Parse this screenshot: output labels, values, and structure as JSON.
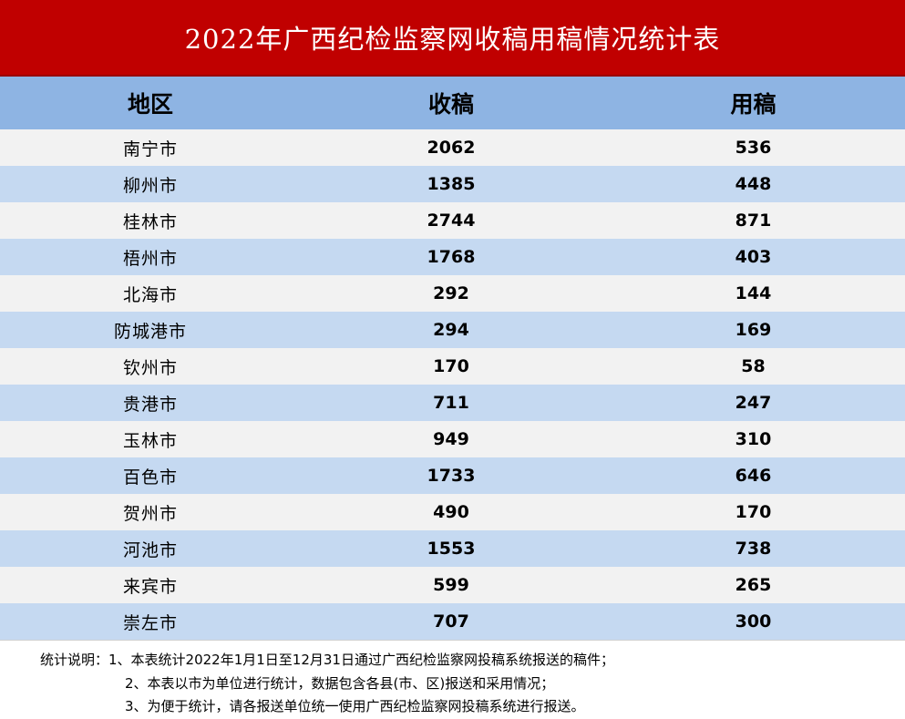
{
  "title": "2022年广西纪检监察网收稿用稿情况统计表",
  "headers": {
    "region": "地区",
    "received": "收稿",
    "used": "用稿"
  },
  "rows": [
    {
      "region": "南宁市",
      "received": "2062",
      "used": "536"
    },
    {
      "region": "柳州市",
      "received": "1385",
      "used": "448"
    },
    {
      "region": "桂林市",
      "received": "2744",
      "used": "871"
    },
    {
      "region": "梧州市",
      "received": "1768",
      "used": "403"
    },
    {
      "region": "北海市",
      "received": "292",
      "used": "144"
    },
    {
      "region": "防城港市",
      "received": "294",
      "used": "169"
    },
    {
      "region": "钦州市",
      "received": "170",
      "used": "58"
    },
    {
      "region": "贵港市",
      "received": "711",
      "used": "247"
    },
    {
      "region": "玉林市",
      "received": "949",
      "used": "310"
    },
    {
      "region": "百色市",
      "received": "1733",
      "used": "646"
    },
    {
      "region": "贺州市",
      "received": "490",
      "used": "170"
    },
    {
      "region": "河池市",
      "received": "1553",
      "used": "738"
    },
    {
      "region": "来宾市",
      "received": "599",
      "used": "265"
    },
    {
      "region": "崇左市",
      "received": "707",
      "used": "300"
    }
  ],
  "notes": {
    "line1": "统计说明：1、本表统计2022年1月1日至12月31日通过广西纪检监察网投稿系统报送的稿件；",
    "line2": "2、本表以市为单位进行统计，数据包含各县(市、区)报送和采用情况；",
    "line3": "3、为便于统计，请各报送单位统一使用广西纪检监察网投稿系统进行报送。"
  },
  "colors": {
    "title_bg": "#c00000",
    "header_bg": "#8eb4e3",
    "row_light": "#f2f2f2",
    "row_blue": "#c5d9f1"
  }
}
